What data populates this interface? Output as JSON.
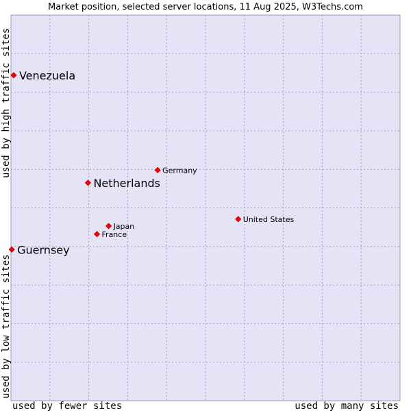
{
  "chart_data": {
    "type": "scatter",
    "title": "Market position, selected server locations, 11 Aug 2025, W3Techs.com",
    "xlabel_left": "used by fewer sites",
    "xlabel_right": "used by many sites",
    "ylabel_bottom": "used by low traffic sites",
    "ylabel_top": "used by high traffic sites",
    "xlim": [
      0,
      100
    ],
    "ylim": [
      0,
      100
    ],
    "grid": true,
    "points": [
      {
        "name": "Venezuela",
        "x": 0.7,
        "y": 84.4,
        "label_size": "large"
      },
      {
        "name": "Netherlands",
        "x": 19.8,
        "y": 56.5,
        "label_size": "large"
      },
      {
        "name": "Germany",
        "x": 37.7,
        "y": 59.8,
        "label_size": "small"
      },
      {
        "name": "United States",
        "x": 58.4,
        "y": 47.1,
        "label_size": "small"
      },
      {
        "name": "Japan",
        "x": 25.1,
        "y": 45.3,
        "label_size": "small"
      },
      {
        "name": "France",
        "x": 22.1,
        "y": 43.2,
        "label_size": "small"
      },
      {
        "name": "Guernsey",
        "x": 0.2,
        "y": 39.2,
        "label_size": "large"
      }
    ],
    "colors": {
      "plot_background": "#e4e4f6",
      "point": "#ff0000",
      "point_stroke": "#b00000"
    }
  }
}
